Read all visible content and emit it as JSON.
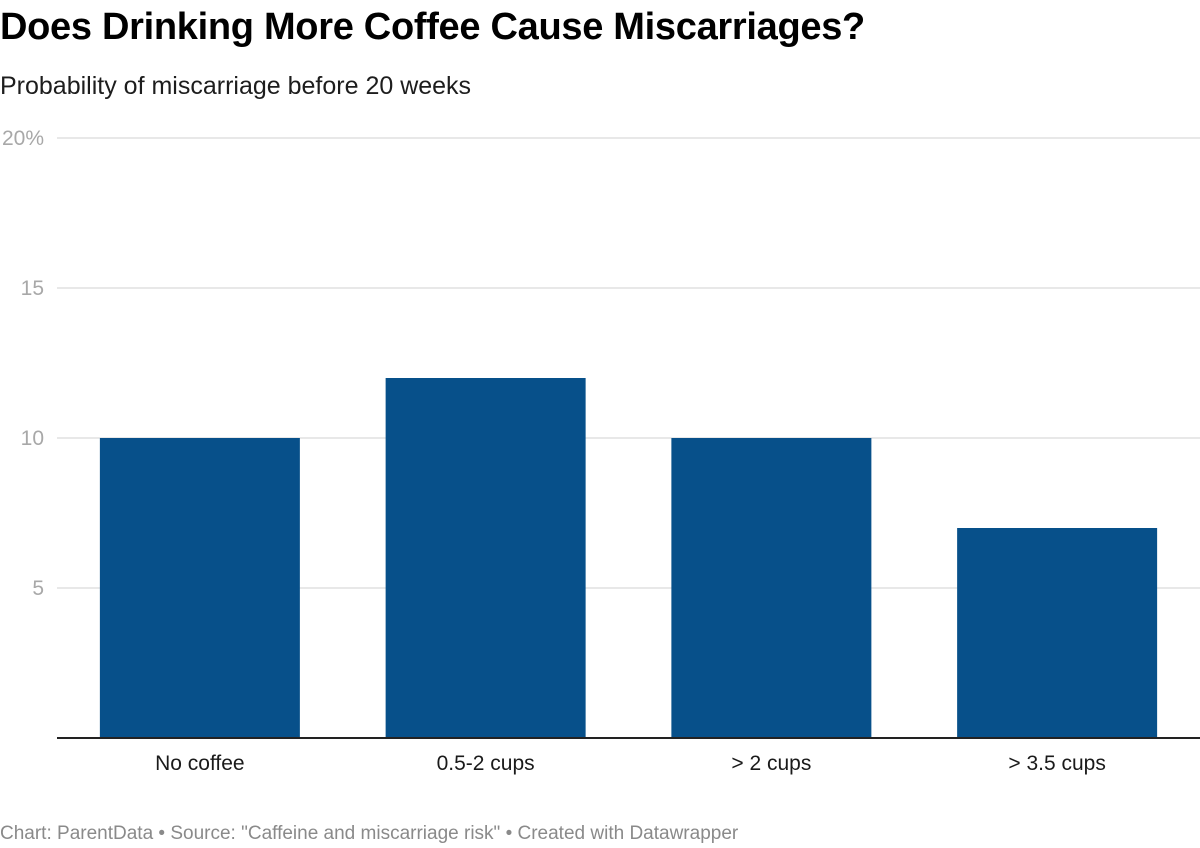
{
  "header": {
    "title": "Does Drinking More Coffee Cause Miscarriages?",
    "subtitle": "Probability of miscarriage before 20 weeks"
  },
  "footer": {
    "credit": "Chart: ParentData • Source: \"Caffeine and miscarriage risk\" • Created with Datawrapper"
  },
  "colors": {
    "bar": "#07508a",
    "gridline": "#e1e1e1",
    "baseline": "#222222"
  },
  "chart_data": {
    "type": "bar",
    "title": "Does Drinking More Coffee Cause Miscarriages?",
    "subtitle": "Probability of miscarriage before 20 weeks",
    "categories": [
      "No coffee",
      "0.5-2 cups",
      "> 2 cups",
      "> 3.5 cups"
    ],
    "values": [
      10,
      12,
      10,
      7
    ],
    "ylim": [
      0,
      20
    ],
    "yticks": [
      5,
      10,
      15,
      20
    ],
    "ytick_labels": [
      "5",
      "10",
      "15",
      "20%"
    ],
    "xlabel": "",
    "ylabel": "",
    "grid": true,
    "legend": "none"
  }
}
